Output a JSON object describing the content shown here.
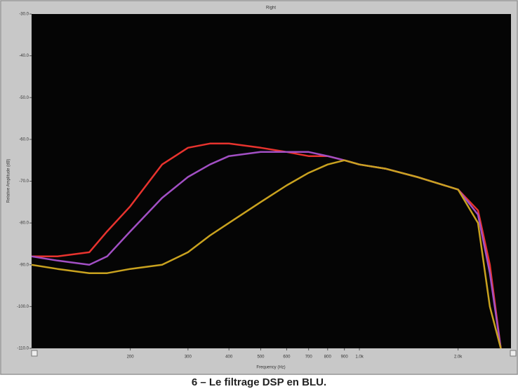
{
  "chart_data": {
    "type": "line",
    "title": "Right",
    "xlabel": "Frequency (Hz)",
    "ylabel": "Relative Amplitude (dB)",
    "caption": "6 – Le filtrage DSP en BLU.",
    "xscale": "log",
    "grid": false,
    "x": [
      100,
      120,
      150,
      170,
      200,
      250,
      300,
      350,
      400,
      500,
      600,
      700,
      800,
      900,
      1000,
      1200,
      1500,
      2000,
      2300,
      2500,
      2700
    ],
    "series": [
      {
        "color": "#e8332e",
        "values": [
          -88,
          -88,
          -87,
          -82,
          -76,
          -66,
          -62,
          -61,
          -61,
          -62,
          -63,
          -64,
          -64,
          -65,
          -66,
          -67,
          -69,
          -72,
          -77,
          -90,
          -110
        ]
      },
      {
        "color": "#a24fc4",
        "values": [
          -88,
          -89,
          -90,
          -88,
          -82,
          -74,
          -69,
          -66,
          -64,
          -63,
          -63,
          -63,
          -64,
          -65,
          -66,
          -67,
          -69,
          -72,
          -78,
          -92,
          -110
        ]
      },
      {
        "color": "#c9a21f",
        "values": [
          -90,
          -91,
          -92,
          -92,
          -91,
          -90,
          -87,
          -83,
          -80,
          -75,
          -71,
          -68,
          -66,
          -65,
          -66,
          -67,
          -69,
          -72,
          -80,
          -100,
          -110
        ]
      }
    ],
    "xlim": [
      100,
      2900
    ],
    "xticks": [
      200,
      300,
      400,
      500,
      600,
      700,
      800,
      900,
      {
        "value": 1000,
        "label": "1.0k"
      },
      {
        "value": 2000,
        "label": "2.0k"
      }
    ],
    "ylim": [
      -30,
      -110
    ],
    "yticks": [
      {
        "value": -30,
        "label": "-30.0"
      },
      {
        "value": -40,
        "label": "-40.0"
      },
      {
        "value": -50,
        "label": "-50.0"
      },
      {
        "value": -60,
        "label": "-60.0"
      },
      {
        "value": -70,
        "label": "-70.0"
      },
      {
        "value": -80,
        "label": "-80.0"
      },
      {
        "value": -90,
        "label": "-90.0"
      },
      {
        "value": -100,
        "label": "-100.0"
      },
      {
        "value": -110,
        "label": "-110.0"
      }
    ]
  }
}
